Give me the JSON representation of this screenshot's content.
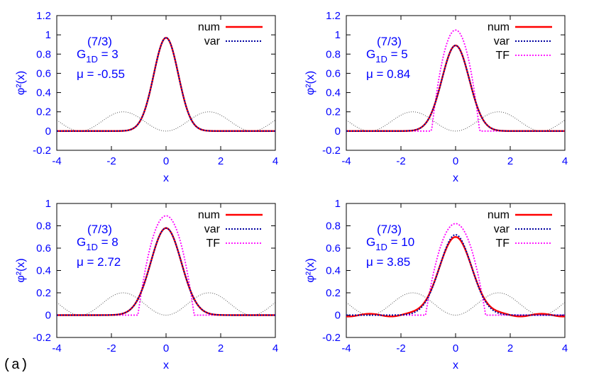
{
  "figure_label": "(a)",
  "colors": {
    "num": "#ff0000",
    "var": "#0000a0",
    "TF": "#ff00ff",
    "potential": "#555555",
    "axis_text": "#0000ff"
  },
  "chart_data": [
    {
      "type": "line",
      "xlabel": "x",
      "ylabel": "φ²(x)",
      "xlim": [
        -4,
        4
      ],
      "ylim": [
        -0.2,
        1.2
      ],
      "xticks": [
        "-4",
        "-2",
        "0",
        "2",
        "4"
      ],
      "yticks": [
        "-0.2",
        "0",
        "0.2",
        "0.4",
        "0.6",
        "0.8",
        "1",
        "1.2"
      ],
      "annotation": {
        "g": "G",
        "sub": "1D",
        "sup": "(7/3)",
        "g_value": "= 3",
        "mu": "μ = -0.55"
      },
      "legend": [
        "num",
        "var"
      ],
      "legend_position": "top-right",
      "params": {
        "peak_num": 0.97,
        "width_num": 0.45,
        "peak_var": 0.97,
        "width_var": 0.45,
        "tf": false
      }
    },
    {
      "type": "line",
      "xlabel": "x",
      "ylabel": "φ²(x)",
      "xlim": [
        -4,
        4
      ],
      "ylim": [
        -0.2,
        1.2
      ],
      "xticks": [
        "-4",
        "-2",
        "0",
        "2",
        "4"
      ],
      "yticks": [
        "-0.2",
        "0",
        "0.2",
        "0.4",
        "0.6",
        "0.8",
        "1",
        "1.2"
      ],
      "annotation": {
        "g": "G",
        "sub": "1D",
        "sup": "(7/3)",
        "g_value": "= 5",
        "mu": "μ = 0.84"
      },
      "legend": [
        "num",
        "var",
        "TF"
      ],
      "legend_position": "top-right",
      "params": {
        "peak_num": 0.89,
        "width_num": 0.5,
        "peak_var": 0.89,
        "width_var": 0.5,
        "tf": true,
        "peak_tf": 1.05,
        "R_tf": 0.88
      }
    },
    {
      "type": "line",
      "xlabel": "x",
      "ylabel": "φ²(x)",
      "xlim": [
        -4,
        4
      ],
      "ylim": [
        -0.2,
        1
      ],
      "xticks": [
        "-4",
        "-2",
        "0",
        "2",
        "4"
      ],
      "yticks": [
        "-0.2",
        "0",
        "0.2",
        "0.4",
        "0.6",
        "0.8",
        "1"
      ],
      "annotation": {
        "g": "G",
        "sub": "1D",
        "sup": "(7/3)",
        "g_value": "= 8",
        "mu": "μ = 2.72"
      },
      "legend": [
        "num",
        "var",
        "TF"
      ],
      "legend_position": "top-right",
      "params": {
        "peak_num": 0.78,
        "width_num": 0.56,
        "peak_var": 0.78,
        "width_var": 0.56,
        "tf": true,
        "peak_tf": 0.89,
        "R_tf": 1.03
      }
    },
    {
      "type": "line",
      "xlabel": "x",
      "ylabel": "φ²(x)",
      "xlim": [
        -4,
        4
      ],
      "ylim": [
        -0.2,
        1
      ],
      "xticks": [
        "-4",
        "-2",
        "0",
        "2",
        "4"
      ],
      "yticks": [
        "-0.2",
        "0",
        "0.2",
        "0.4",
        "0.6",
        "0.8",
        "1"
      ],
      "annotation": {
        "g": "G",
        "sub": "1D",
        "sup": "(7/3)",
        "g_value": "= 10",
        "mu": "μ = 3.85"
      },
      "legend": [
        "num",
        "var",
        "TF"
      ],
      "legend_position": "top-right",
      "params": {
        "peak_num": 0.7,
        "width_num": 0.6,
        "peak_var": 0.72,
        "width_var": 0.58,
        "tf": true,
        "peak_tf": 0.82,
        "R_tf": 1.1
      }
    }
  ]
}
